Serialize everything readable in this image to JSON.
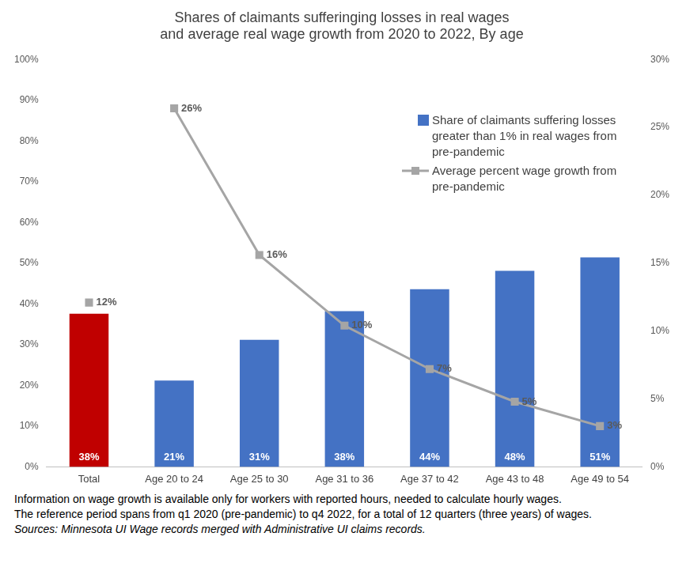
{
  "chart_data": {
    "type": "bar",
    "title": [
      "Shares of claimants sufferinging losses in real wages",
      "and average real wage growth from 2020 to 2022, By age"
    ],
    "categories": [
      "Total",
      "Age 20 to 24",
      "Age 25 to 30",
      "Age 31 to 36",
      "Age 37 to 42",
      "Age 43 to 48",
      "Age 49 to 54"
    ],
    "series": [
      {
        "name": "Share of claimants suffering losses greater than 1% in real wages from pre-pandemic",
        "type": "bar",
        "color": "#4472c4",
        "colors": [
          "#c00000",
          "#4472c4",
          "#4472c4",
          "#4472c4",
          "#4472c4",
          "#4472c4",
          "#4472c4"
        ],
        "values": [
          37.6,
          21.2,
          31.2,
          38.2,
          43.6,
          48.1,
          51.4
        ],
        "value_labels": [
          "38%",
          "21%",
          "31%",
          "38%",
          "44%",
          "48%",
          "51%"
        ]
      },
      {
        "name": "Average percent wage growth from pre-pandemic",
        "type": "line",
        "axis": "y2",
        "color": "#a5a5a5",
        "marker": "square",
        "line_style": "solid",
        "values": [
          12.1,
          26.4,
          15.6,
          10.4,
          7.2,
          4.8,
          3.0
        ],
        "value_labels": [
          "12%",
          "26%",
          "16%",
          "10%",
          "7%",
          "5%",
          "3%"
        ]
      }
    ],
    "ylim": [
      0,
      100
    ],
    "yticks": [
      {
        "value": 0,
        "label": "0%"
      },
      {
        "value": 10,
        "label": "10%"
      },
      {
        "value": 20,
        "label": "20%"
      },
      {
        "value": 30,
        "label": "30%"
      },
      {
        "value": 40,
        "label": "40%"
      },
      {
        "value": 50,
        "label": "50%"
      },
      {
        "value": 60,
        "label": "60%"
      },
      {
        "value": 70,
        "label": "70%"
      },
      {
        "value": 80,
        "label": "80%"
      },
      {
        "value": 90,
        "label": "90%"
      },
      {
        "value": 100,
        "label": "100%"
      }
    ],
    "y2lim": [
      0,
      30
    ],
    "y2ticks": [
      {
        "value": 0,
        "label": "0%"
      },
      {
        "value": 5,
        "label": "5%"
      },
      {
        "value": 10,
        "label": "10%"
      },
      {
        "value": 15,
        "label": "15%"
      },
      {
        "value": 20,
        "label": "20%"
      },
      {
        "value": 25,
        "label": "25%"
      },
      {
        "value": 30,
        "label": "30%"
      }
    ],
    "grid": false,
    "legend": "upper right",
    "data_labels": true,
    "notes": [
      "Information on wage growth is available only for workers with reported hours, needed to calculate hourly wages.",
      "The reference period spans from q1 2020 (pre-pandemic) to q4 2022, for a total of 12 quarters (three years) of wages."
    ],
    "source": "Sources: Minnesota UI Wage records merged with Administrative UI claims records."
  }
}
